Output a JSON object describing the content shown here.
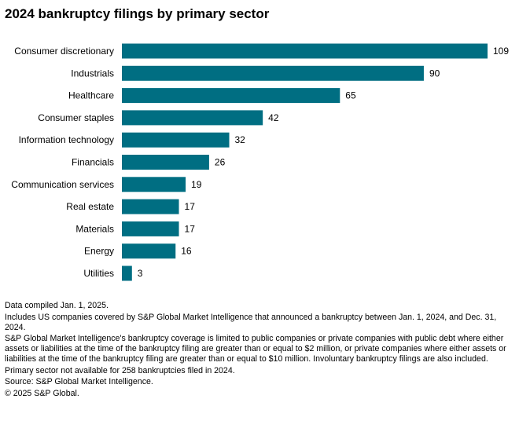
{
  "chart_data": {
    "type": "bar",
    "orientation": "horizontal",
    "title": "2024 bankruptcy filings by primary sector",
    "categories": [
      "Consumer discretionary",
      "Industrials",
      "Healthcare",
      "Consumer staples",
      "Information technology",
      "Financials",
      "Communication services",
      "Real estate",
      "Materials",
      "Energy",
      "Utilities"
    ],
    "values": [
      109,
      90,
      65,
      42,
      32,
      26,
      19,
      17,
      17,
      16,
      3
    ],
    "xlabel": "",
    "ylabel": "",
    "xlim": [
      0,
      109
    ],
    "grid": false,
    "color": "#006e82"
  },
  "notes": [
    "Data compiled Jan. 1, 2025.",
    "Includes US companies covered by S&P Global Market Intelligence that announced a bankruptcy between Jan. 1, 2024, and Dec. 31, 2024.",
    "S&P Global Market Intelligence's bankruptcy coverage is limited to public companies or private companies with public debt where either assets or liabilities at the time of the bankruptcy filing are greater than or equal to $2 million, or private companies where either assets or liabilities at the time of the bankruptcy filing are greater than or equal to $10 million. Involuntary bankruptcy filings are also included.",
    "Primary sector not available for 258 bankruptcies filed in 2024.",
    "Source: S&P Global Market Intelligence.",
    "© 2025 S&P Global."
  ]
}
